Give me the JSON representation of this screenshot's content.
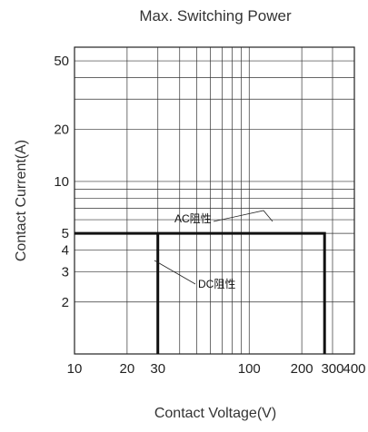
{
  "chart_data": {
    "type": "line",
    "title": "Max. Switching Power",
    "xlabel": "Contact Voltage(V)",
    "ylabel": "Contact Current(A)",
    "x_scale": "log",
    "y_scale": "log",
    "xlim": [
      10,
      400
    ],
    "ylim": [
      1,
      60
    ],
    "x_ticks": [
      {
        "value": 10,
        "label": "10"
      },
      {
        "value": 20,
        "label": "20"
      },
      {
        "value": 30,
        "label": "30"
      },
      {
        "value": 100,
        "label": "100"
      },
      {
        "value": 200,
        "label": "200"
      },
      {
        "value": 300,
        "label": "300"
      },
      {
        "value": 400,
        "label": "400"
      }
    ],
    "y_ticks": [
      {
        "value": 2,
        "label": "2"
      },
      {
        "value": 3,
        "label": "3"
      },
      {
        "value": 4,
        "label": "4"
      },
      {
        "value": 5,
        "label": "5"
      },
      {
        "value": 10,
        "label": "10"
      },
      {
        "value": 20,
        "label": "20"
      },
      {
        "value": 50,
        "label": "50"
      }
    ],
    "grid": true,
    "series": [
      {
        "name": "AC阻性",
        "points": [
          [
            10,
            5
          ],
          [
            270,
            5
          ],
          [
            270,
            1
          ]
        ]
      },
      {
        "name": "DC阻性",
        "points": [
          [
            30,
            1
          ],
          [
            30,
            5
          ]
        ]
      }
    ],
    "annotations": [
      {
        "text": "AC阻性"
      },
      {
        "text": "DC阻性"
      }
    ],
    "line_color": "#111111",
    "grid_color": "#333333"
  }
}
